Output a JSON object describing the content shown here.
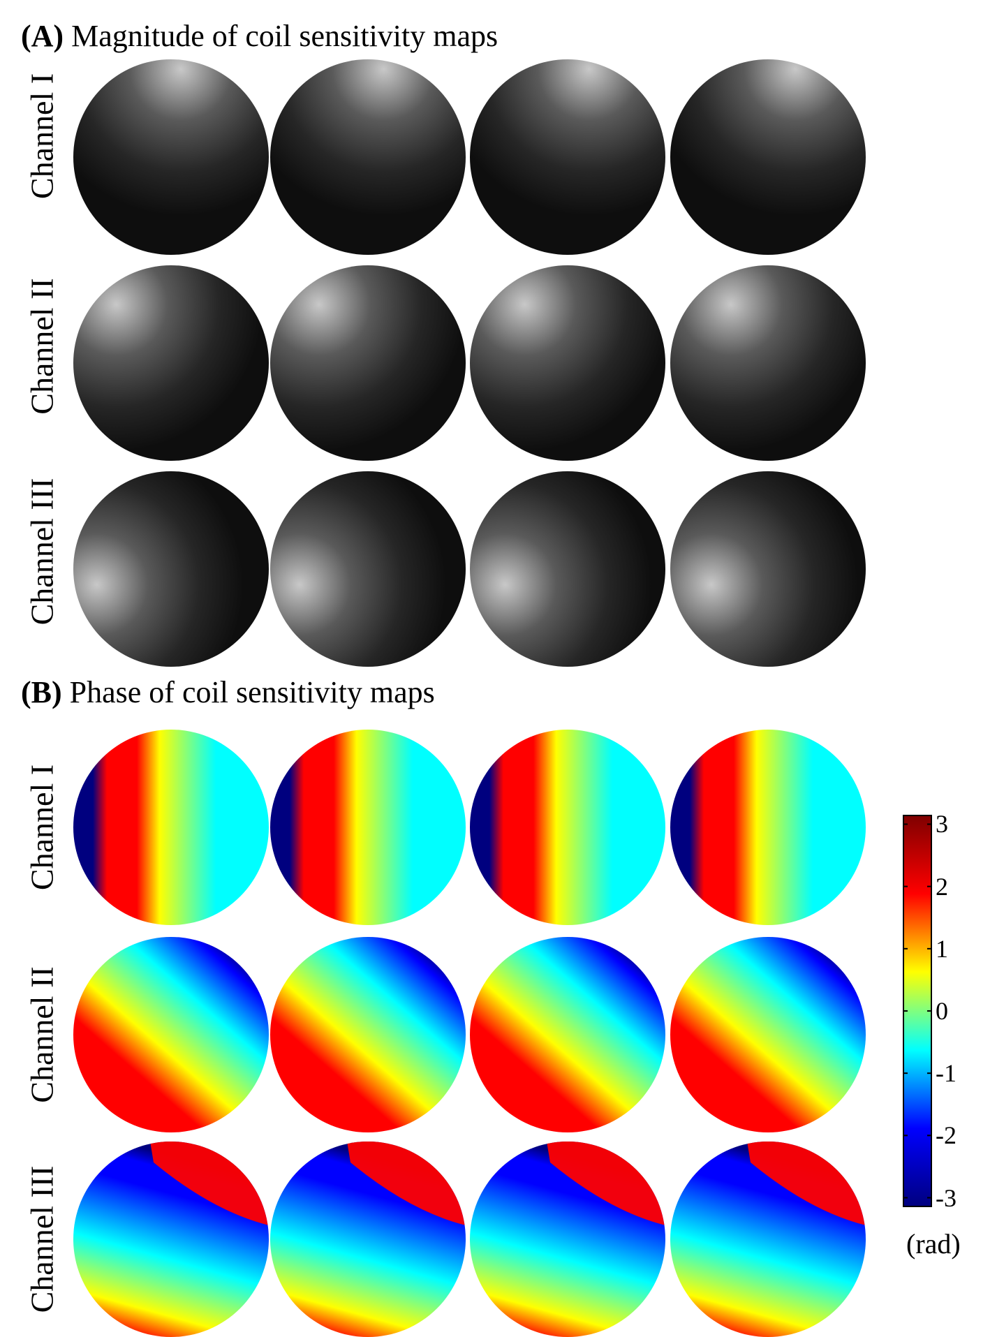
{
  "figure": {
    "sections": [
      {
        "id": "A",
        "letter": "(A)",
        "title": "Magnitude of coil sensitivity maps",
        "kind": "magnitude"
      },
      {
        "id": "B",
        "letter": "(B)",
        "title": "Phase of coil sensitivity maps",
        "kind": "phase"
      }
    ],
    "row_labels": [
      "Channel I",
      "Channel II",
      "Channel III"
    ],
    "columns": 4
  },
  "colorbar": {
    "ticks": [
      "3",
      "2",
      "1",
      "0",
      "-1",
      "-2",
      "-3"
    ],
    "tick_values": [
      3,
      2,
      1,
      0,
      -1,
      -2,
      -3
    ],
    "range": [
      -3.14,
      3.14
    ],
    "unit": "(rad)",
    "colormap": "jet",
    "colors": [
      "#00007f",
      "#0000ff",
      "#00ffff",
      "#ffff00",
      "#ff0000",
      "#7f0000"
    ]
  },
  "magnitude_maps": {
    "colormap": "gray",
    "colors": {
      "dark": "#0e0e0e",
      "bright": "#c8c8c8"
    }
  }
}
